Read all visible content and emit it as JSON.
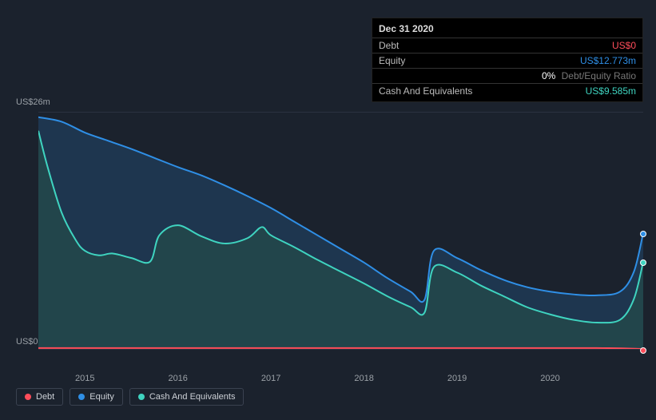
{
  "tooltip": {
    "date": "Dec 31 2020",
    "rows": [
      {
        "label": "Debt",
        "value": "US$0",
        "color": "#ff4d5a"
      },
      {
        "label": "Equity",
        "value": "US$12.773m",
        "color": "#2f8fe6"
      },
      {
        "label": "",
        "value": "0%",
        "sub": "Debt/Equity Ratio",
        "color": "#ffffff"
      },
      {
        "label": "Cash And Equivalents",
        "value": "US$9.585m",
        "color": "#3fd4c0"
      }
    ]
  },
  "chart": {
    "type": "area",
    "background_color": "#1b222d",
    "grid_color": "#2a3240",
    "axis_label_color": "#9aa0a6",
    "axis_fontsize": 11,
    "y_top_label": "US$26m",
    "y_bottom_label": "US$0",
    "ylim": [
      0,
      26
    ],
    "xlim": [
      2014.5,
      2021.0
    ],
    "x_ticks": [
      2015,
      2016,
      2017,
      2018,
      2019,
      2020
    ],
    "x_tick_labels": [
      "2015",
      "2016",
      "2017",
      "2018",
      "2019",
      "2020"
    ],
    "series": [
      {
        "name": "Equity",
        "stroke": "#2f8fe6",
        "fill": "#1e3a56",
        "fill_opacity": 0.85,
        "line_width": 2,
        "data": [
          [
            2014.5,
            25.5
          ],
          [
            2014.75,
            25.0
          ],
          [
            2015.0,
            23.8
          ],
          [
            2015.25,
            22.9
          ],
          [
            2015.5,
            22.0
          ],
          [
            2015.75,
            21.0
          ],
          [
            2016.0,
            20.0
          ],
          [
            2016.25,
            19.1
          ],
          [
            2016.5,
            18.0
          ],
          [
            2016.75,
            16.8
          ],
          [
            2017.0,
            15.5
          ],
          [
            2017.25,
            14.0
          ],
          [
            2017.5,
            12.5
          ],
          [
            2017.75,
            11.0
          ],
          [
            2018.0,
            9.5
          ],
          [
            2018.25,
            7.8
          ],
          [
            2018.5,
            6.3
          ],
          [
            2018.65,
            5.4
          ],
          [
            2018.75,
            10.8
          ],
          [
            2019.0,
            10.0
          ],
          [
            2019.25,
            8.7
          ],
          [
            2019.5,
            7.6
          ],
          [
            2019.75,
            6.8
          ],
          [
            2020.0,
            6.3
          ],
          [
            2020.25,
            6.0
          ],
          [
            2020.5,
            5.9
          ],
          [
            2020.75,
            6.3
          ],
          [
            2020.9,
            8.5
          ],
          [
            2021.0,
            12.773
          ]
        ]
      },
      {
        "name": "Cash And Equivalents",
        "stroke": "#3fd4c0",
        "fill": "#244b4a",
        "fill_opacity": 0.75,
        "line_width": 2,
        "data": [
          [
            2014.5,
            24.0
          ],
          [
            2014.6,
            20.0
          ],
          [
            2014.75,
            15.0
          ],
          [
            2014.9,
            12.0
          ],
          [
            2015.0,
            10.8
          ],
          [
            2015.15,
            10.3
          ],
          [
            2015.3,
            10.5
          ],
          [
            2015.5,
            10.0
          ],
          [
            2015.7,
            9.6
          ],
          [
            2015.8,
            12.5
          ],
          [
            2016.0,
            13.6
          ],
          [
            2016.25,
            12.4
          ],
          [
            2016.5,
            11.6
          ],
          [
            2016.75,
            12.2
          ],
          [
            2016.9,
            13.4
          ],
          [
            2017.0,
            12.5
          ],
          [
            2017.25,
            11.2
          ],
          [
            2017.5,
            9.8
          ],
          [
            2017.75,
            8.5
          ],
          [
            2018.0,
            7.2
          ],
          [
            2018.25,
            5.8
          ],
          [
            2018.5,
            4.6
          ],
          [
            2018.65,
            4.0
          ],
          [
            2018.75,
            9.0
          ],
          [
            2019.0,
            8.4
          ],
          [
            2019.25,
            7.0
          ],
          [
            2019.5,
            5.8
          ],
          [
            2019.75,
            4.6
          ],
          [
            2020.0,
            3.8
          ],
          [
            2020.25,
            3.2
          ],
          [
            2020.5,
            2.9
          ],
          [
            2020.75,
            3.2
          ],
          [
            2020.9,
            5.5
          ],
          [
            2021.0,
            9.585
          ]
        ]
      },
      {
        "name": "Debt",
        "stroke": "#ff4d5a",
        "fill": "#3a222a",
        "fill_opacity": 0.9,
        "line_width": 2,
        "data": [
          [
            2014.5,
            0.1
          ],
          [
            2015.5,
            0.1
          ],
          [
            2016.5,
            0.1
          ],
          [
            2017.5,
            0.1
          ],
          [
            2018.5,
            0.1
          ],
          [
            2019.5,
            0.1
          ],
          [
            2020.5,
            0.1
          ],
          [
            2021.0,
            0.0
          ]
        ]
      }
    ],
    "end_markers": [
      {
        "color": "#2f8fe6",
        "x": 2021.0,
        "y": 12.773
      },
      {
        "color": "#3fd4c0",
        "x": 2021.0,
        "y": 9.585
      },
      {
        "color": "#ff4d5a",
        "x": 2021.0,
        "y": 0.0
      }
    ]
  },
  "legend": {
    "border_color": "#3a4250",
    "text_color": "#ccd0d6",
    "fontsize": 11,
    "items": [
      {
        "label": "Debt",
        "color": "#ff4d5a"
      },
      {
        "label": "Equity",
        "color": "#2f8fe6"
      },
      {
        "label": "Cash And Equivalents",
        "color": "#3fd4c0"
      }
    ]
  }
}
